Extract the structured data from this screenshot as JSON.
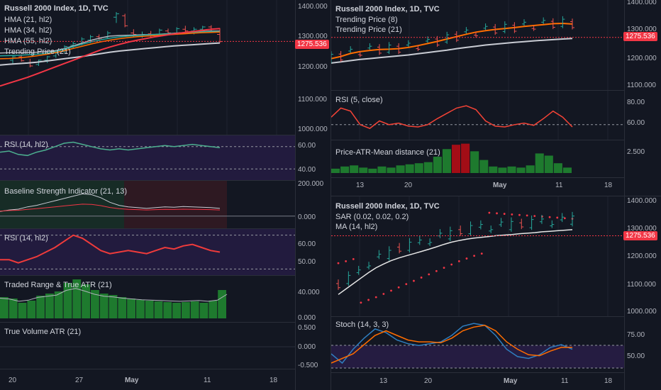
{
  "colors": {
    "bg": "#131722",
    "grid": "#1f2330",
    "text": "#d1d4dc",
    "up": "#26a69a",
    "down": "#ef5350",
    "price_line": "#f23645",
    "orange": "#ff6d00",
    "gray": "#c8cbd3",
    "green_rsi": "#4caf8f",
    "purple_band": "#2a1e4a",
    "bar_green": "#1e7a2e",
    "bar_red": "#a30d16",
    "blue": "#2f7ebf"
  },
  "price_tag": "1275.536",
  "left": {
    "title": "Russell 2000 Index, 1D, TVC",
    "legend": [
      "HMA (21, hl2)",
      "HMA (34, hl2)",
      "HMA (55, hl2)",
      "Trending Price (21)"
    ],
    "price_axis": [
      "1400.000",
      "1300.000",
      "1200.000",
      "1100.000",
      "1000.000"
    ],
    "rsi_label": "RSI (14, hl2)",
    "rsi_axis": [
      "60.00",
      "40.00"
    ],
    "bsi_label": "Baseline Strength Indicator (21, 13)",
    "bsi_axis": [
      "200.000",
      "0.000"
    ],
    "rsi2_label": "RSI (14, hl2)",
    "rsi2_axis": [
      "60.00",
      "50.00"
    ],
    "atr_label": "Traded Range & True ATR (21)",
    "atr_axis": [
      "40.000",
      "0.000"
    ],
    "tv_label": "True Volume ATR (21)",
    "tv_axis": [
      "0.500",
      "0.000",
      "-0.500"
    ],
    "time_axis": [
      "20",
      "27",
      "May",
      "11",
      "18"
    ]
  },
  "right_top": {
    "title": "Russell 2000 Index, 1D, TVC",
    "legend": [
      "Trending Price (8)",
      "Trending Price (21)"
    ],
    "price_axis": [
      "1400.000",
      "1300.000",
      "1200.000",
      "1100.000"
    ],
    "rsi_label": "RSI (5, close)",
    "rsi_axis": [
      "80.00",
      "60.00"
    ],
    "dist_label": "Price-ATR-Mean distance (21)",
    "dist_axis": [
      "2.500"
    ],
    "time_axis": [
      "13",
      "20",
      "May",
      "11",
      "18"
    ]
  },
  "right_bottom": {
    "title": "Russell 2000 Index, 1D, TVC",
    "legend": [
      "SAR (0.02, 0.02, 0.2)",
      "MA (14, hl2)"
    ],
    "price_axis": [
      "1400.000",
      "1300.000",
      "1200.000",
      "1100.000",
      "1000.000"
    ],
    "stoch_label": "Stoch (14, 3, 3)",
    "stoch_axis": [
      "75.00",
      "50.00"
    ],
    "time_axis": [
      "13",
      "20",
      "May",
      "11",
      "18"
    ]
  },
  "chart_data": [
    {
      "type": "line",
      "title": "Russell 2000 Index, 1D, TVC",
      "ylim": [
        950,
        1420
      ],
      "candles": [
        [
          1210,
          1228,
          1195,
          1222
        ],
        [
          1222,
          1230,
          1205,
          1208
        ],
        [
          1200,
          1215,
          1185,
          1190
        ],
        [
          1195,
          1212,
          1190,
          1210
        ],
        [
          1210,
          1225,
          1200,
          1222
        ],
        [
          1225,
          1240,
          1218,
          1235
        ],
        [
          1240,
          1262,
          1235,
          1258
        ],
        [
          1262,
          1275,
          1250,
          1268
        ],
        [
          1268,
          1290,
          1262,
          1284
        ],
        [
          1280,
          1298,
          1270,
          1292
        ],
        [
          1292,
          1300,
          1278,
          1286
        ],
        [
          1290,
          1312,
          1285,
          1305
        ],
        [
          1360,
          1378,
          1340,
          1372
        ],
        [
          1365,
          1372,
          1325,
          1330
        ],
        [
          1305,
          1318,
          1290,
          1300
        ],
        [
          1296,
          1310,
          1288,
          1300
        ],
        [
          1302,
          1312,
          1290,
          1298
        ],
        [
          1298,
          1320,
          1292,
          1315
        ],
        [
          1312,
          1320,
          1300,
          1305
        ],
        [
          1305,
          1325,
          1300,
          1320
        ],
        [
          1318,
          1330,
          1305,
          1312
        ],
        [
          1312,
          1325,
          1300,
          1318
        ],
        [
          1318,
          1330,
          1310,
          1326
        ],
        [
          1326,
          1332,
          1312,
          1318
        ],
        [
          1300,
          1322,
          1270,
          1275
        ]
      ],
      "series": [
        {
          "name": "HMA (21, hl2)",
          "values": [
            1235,
            1236,
            1236,
            1237,
            1238,
            1240,
            1243,
            1250,
            1260,
            1270,
            1280,
            1288,
            1294,
            1296,
            1297,
            1298,
            1299,
            1300,
            1302,
            1304,
            1306,
            1308,
            1310,
            1312,
            1312
          ]
        },
        {
          "name": "HMA (34, hl2)",
          "values": [
            1225,
            1226,
            1227,
            1229,
            1231,
            1234,
            1240,
            1248,
            1257,
            1266,
            1274,
            1281,
            1287,
            1291,
            1294,
            1296,
            1298,
            1300,
            1301,
            1303,
            1305,
            1307,
            1309,
            1310,
            1310
          ]
        },
        {
          "name": "HMA (55, hl2)",
          "values": [
            1215,
            1216,
            1218,
            1221,
            1225,
            1230,
            1236,
            1243,
            1251,
            1259,
            1267,
            1274,
            1280,
            1285,
            1289,
            1292,
            1294,
            1296,
            1298,
            1300,
            1302,
            1304,
            1306,
            1307,
            1308
          ]
        },
        {
          "name": "Trending Price (21)",
          "values": [
            1193,
            1196,
            1198,
            1200,
            1203,
            1207,
            1211,
            1215,
            1219,
            1223,
            1228,
            1233,
            1238,
            1242,
            1245,
            1248,
            1251,
            1254,
            1257,
            1260,
            1262,
            1264,
            1266,
            1268,
            1270
          ]
        },
        {
          "name": "",
          "values": [
            1120,
            1130,
            1140,
            1150,
            1162,
            1174,
            1186,
            1198,
            1210,
            1222,
            1234,
            1246,
            1256,
            1265,
            1273,
            1280,
            1286,
            1292,
            1297,
            1302,
            1306,
            1310,
            1314,
            1318,
            1320
          ]
        }
      ],
      "rsi": [
        55,
        56,
        53,
        52,
        55,
        57,
        60,
        63,
        64,
        62,
        60,
        58,
        57,
        58,
        57,
        58,
        59,
        60,
        61,
        60,
        61,
        62,
        61,
        60,
        59
      ],
      "bsi": [
        30,
        40,
        45,
        60,
        70,
        85,
        100,
        115,
        130,
        145,
        140,
        120,
        90,
        70,
        60,
        55,
        50,
        55,
        60,
        58,
        62,
        60,
        58,
        55,
        50
      ],
      "rsi2": [
        50,
        50,
        48,
        50,
        52,
        55,
        58,
        62,
        66,
        64,
        60,
        56,
        54,
        55,
        56,
        55,
        54,
        56,
        58,
        57,
        59,
        60,
        58,
        56,
        55
      ],
      "atr": [
        30,
        28,
        22,
        25,
        32,
        35,
        38,
        50,
        55,
        48,
        40,
        35,
        33,
        30,
        28,
        26,
        25,
        24,
        23,
        22,
        23,
        24,
        22,
        25,
        40
      ]
    },
    {
      "type": "line",
      "title": "Russell 2000 Index, 1D, TVC",
      "ylim": [
        1100,
        1400
      ],
      "series": [
        {
          "name": "Trending Price (8)",
          "values": [
            1205,
            1212,
            1222,
            1228,
            1232,
            1235,
            1236,
            1238,
            1242,
            1248,
            1255,
            1262,
            1270,
            1278,
            1286,
            1293,
            1298,
            1302,
            1305,
            1308,
            1312,
            1315,
            1318,
            1321,
            1322,
            1320
          ]
        },
        {
          "name": "Trending Price (21)",
          "values": [
            1190,
            1194,
            1198,
            1202,
            1205,
            1208,
            1211,
            1214,
            1217,
            1221,
            1225,
            1229,
            1233,
            1238,
            1242,
            1246,
            1250,
            1253,
            1256,
            1259,
            1261,
            1264,
            1266,
            1268,
            1270,
            1272
          ]
        }
      ],
      "rsi": [
        60,
        72,
        68,
        50,
        45,
        55,
        50,
        52,
        48,
        47,
        50,
        58,
        65,
        72,
        75,
        70,
        55,
        48,
        47,
        50,
        52,
        49,
        58,
        68,
        60,
        47
      ],
      "dist": [
        0.4,
        0.6,
        0.7,
        0.5,
        0.4,
        0.6,
        0.5,
        0.7,
        0.8,
        0.9,
        1.0,
        1.5,
        2.2,
        2.6,
        2.7,
        2.0,
        1.2,
        0.6,
        0.5,
        0.6,
        0.5,
        0.7,
        1.8,
        1.6,
        0.9,
        0.5
      ]
    },
    {
      "type": "line",
      "title": "Russell 2000 Index, 1D, TVC",
      "ylim": [
        980,
        1420
      ],
      "series": [
        {
          "name": "MA (14, hl2)",
          "values": [
            1060,
            1080,
            1100,
            1120,
            1140,
            1158,
            1172,
            1184,
            1194,
            1202,
            1210,
            1218,
            1226,
            1235,
            1244,
            1252,
            1258,
            1263,
            1267,
            1270,
            1273,
            1276,
            1278,
            1280,
            1283,
            1285,
            1287,
            1290,
            1292,
            1294,
            1296,
            1298
          ]
        },
        {
          "name": "SAR (0.02, 0.02, 0.2)",
          "values": [
            1175,
            1182,
            1190,
            1030,
            1040,
            1050,
            1062,
            1074,
            1086,
            1098,
            1110,
            1122,
            1134,
            1146,
            1158,
            1170,
            1182,
            1192,
            1202,
            1210,
            1360,
            1358,
            1356,
            1354,
            1352,
            1350,
            1348,
            1346,
            1344,
            1342,
            1340,
            1338
          ]
        }
      ],
      "stoch": [
        [
          55,
          45
        ],
        [
          45,
          50
        ],
        [
          60,
          55
        ],
        [
          72,
          65
        ],
        [
          82,
          75
        ],
        [
          78,
          80
        ],
        [
          70,
          75
        ],
        [
          66,
          70
        ],
        [
          64,
          68
        ],
        [
          66,
          68
        ],
        [
          68,
          67
        ],
        [
          75,
          72
        ],
        [
          85,
          80
        ],
        [
          88,
          84
        ],
        [
          86,
          86
        ],
        [
          75,
          80
        ],
        [
          60,
          68
        ],
        [
          52,
          60
        ],
        [
          50,
          54
        ],
        [
          54,
          53
        ],
        [
          62,
          58
        ],
        [
          65,
          62
        ],
        [
          60,
          62
        ]
      ]
    }
  ]
}
